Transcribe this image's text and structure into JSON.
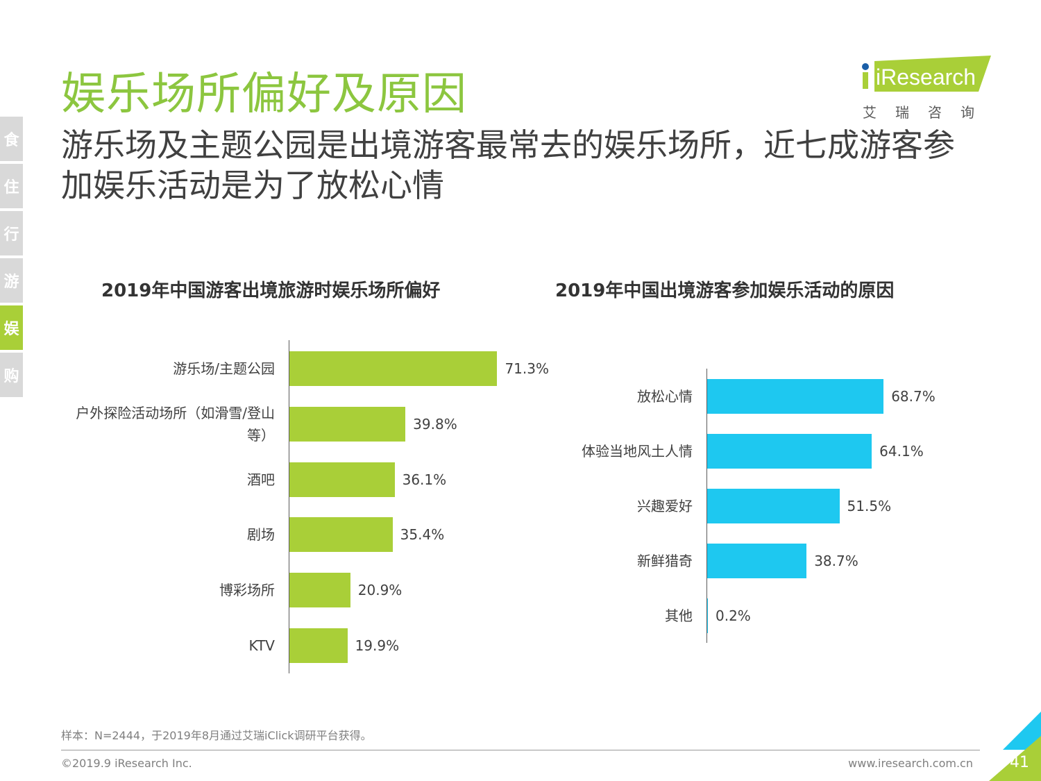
{
  "side_nav": [
    {
      "label": "食",
      "active": false
    },
    {
      "label": "住",
      "active": false
    },
    {
      "label": "行",
      "active": false
    },
    {
      "label": "游",
      "active": false
    },
    {
      "label": "娱",
      "active": true
    },
    {
      "label": "购",
      "active": false
    }
  ],
  "title": "娱乐场所偏好及原因",
  "subtitle": "游乐场及主题公园是出境游客最常去的娱乐场所，近七成游客参加娱乐活动是为了放松心情",
  "logo": {
    "text": "iResearch",
    "subtext": "艾瑞咨询"
  },
  "colors": {
    "green": "#a9cf38",
    "blue": "#1ec8f0",
    "title_green": "#8cc63f"
  },
  "chart_data": [
    {
      "type": "bar",
      "orientation": "horizontal",
      "title": "2019年中国游客出境旅游时娱乐场所偏好",
      "categories": [
        "游乐场/主题公园",
        "户外探险活动场所（如滑雪/登山等）",
        "酒吧",
        "剧场",
        "博彩场所",
        "KTV"
      ],
      "values": [
        71.3,
        39.8,
        36.1,
        35.4,
        20.9,
        19.9
      ],
      "value_labels": [
        "71.3%",
        "39.8%",
        "36.1%",
        "35.4%",
        "20.9%",
        "19.9%"
      ],
      "unit": "%",
      "color": "#a9cf38"
    },
    {
      "type": "bar",
      "orientation": "horizontal",
      "title": "2019年中国出境游客参加娱乐活动的原因",
      "categories": [
        "放松心情",
        "体验当地风土人情",
        "兴趣爱好",
        "新鲜猎奇",
        "其他"
      ],
      "values": [
        68.7,
        64.1,
        51.5,
        38.7,
        0.2
      ],
      "value_labels": [
        "68.7%",
        "64.1%",
        "51.5%",
        "38.7%",
        "0.2%"
      ],
      "unit": "%",
      "color": "#1ec8f0"
    }
  ],
  "footnote": "样本：N=2444，于2019年8月通过艾瑞iClick调研平台获得。",
  "copyright": "©2019.9 iResearch Inc.",
  "website": "www.iresearch.com.cn",
  "page_number": "41"
}
